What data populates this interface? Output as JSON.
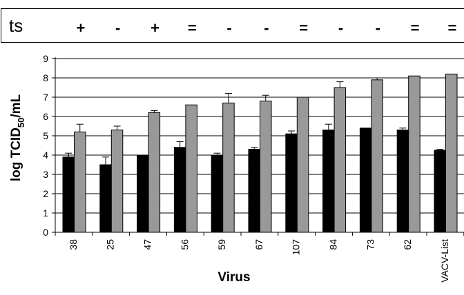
{
  "ts_row": {
    "label": "ts",
    "symbols": [
      "+",
      "-",
      "+",
      "=",
      "-",
      "-",
      "=",
      "-",
      "-",
      "=",
      "="
    ]
  },
  "chart_data": {
    "type": "bar",
    "categories": [
      "38",
      "25",
      "47",
      "56",
      "59",
      "67",
      "107",
      "84",
      "73",
      "62",
      "VACV-List"
    ],
    "series": [
      {
        "color": "#000000",
        "values": [
          3.9,
          3.5,
          4.0,
          4.4,
          4.0,
          4.3,
          5.1,
          5.3,
          5.4,
          5.3,
          4.25
        ],
        "errors": [
          0.2,
          0.4,
          0,
          0.3,
          0.1,
          0.1,
          0.15,
          0.3,
          0,
          0.1,
          0.05
        ]
      },
      {
        "color": "#999999",
        "values": [
          5.2,
          5.3,
          6.2,
          6.6,
          6.7,
          6.8,
          7.0,
          7.5,
          7.9,
          8.1,
          8.2
        ],
        "errors": [
          0.4,
          0.2,
          0.1,
          0,
          0.5,
          0.3,
          0,
          0.3,
          0.1,
          0,
          0
        ]
      }
    ],
    "xlabel": "Virus",
    "ylabel": {
      "main": "log TCID",
      "sub": "50",
      "tail": "/mL"
    },
    "ylim": [
      0,
      9
    ],
    "yticks": [
      "0",
      "1",
      "2",
      "3",
      "4",
      "5",
      "6",
      "7",
      "8",
      "9"
    ],
    "grid": true,
    "legend": "none"
  }
}
